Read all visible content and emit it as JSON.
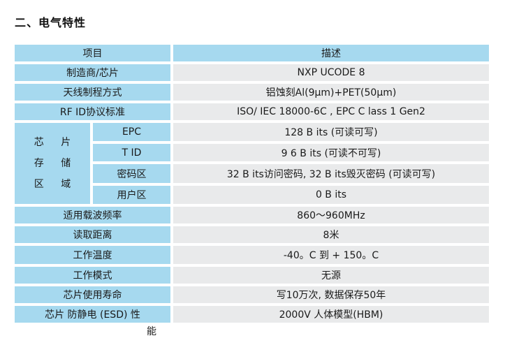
{
  "heading": "二、电气特性",
  "header": {
    "item": "项目",
    "desc": "描述"
  },
  "rows": [
    {
      "label": "制造商/芯片",
      "value": "NXP UCODE 8"
    },
    {
      "label": "天线制程方式",
      "value": "铝蚀刻Al(9μm)+PET(50μm)"
    },
    {
      "label": "RF ID协议标准",
      "value": "ISO/ IEC  18000-6C , EPC  C lass 1  Gen2"
    }
  ],
  "chip_region": {
    "label_lines": [
      "芯 片",
      "存 储",
      "区 域"
    ],
    "items": [
      {
        "label": "EPC",
        "value": "128  B its  (可读可写)"
      },
      {
        "label": "T ID",
        "value": "9 6  B its  (可读不可写)"
      },
      {
        "label": "密码区",
        "value": "32 B its访问密码, 32 B its毁灭密码  (可读可写)"
      },
      {
        "label": "用户区",
        "value": "0  B its"
      }
    ]
  },
  "rows2": [
    {
      "label": "适用载波频率",
      "value": "860～960MHz"
    },
    {
      "label": "读取距离",
      "value": "8米"
    },
    {
      "label": "工作温度",
      "value": "-40。C  到  + 150。C"
    },
    {
      "label": "工作模式",
      "value": "无源"
    },
    {
      "label": "芯片使用寿命",
      "value": "写10万次,  数据保存50年"
    },
    {
      "label": "芯片 防静电  (ESD)  性",
      "label_tail": "能",
      "value": "2000V  人体模型(HBM)"
    }
  ]
}
